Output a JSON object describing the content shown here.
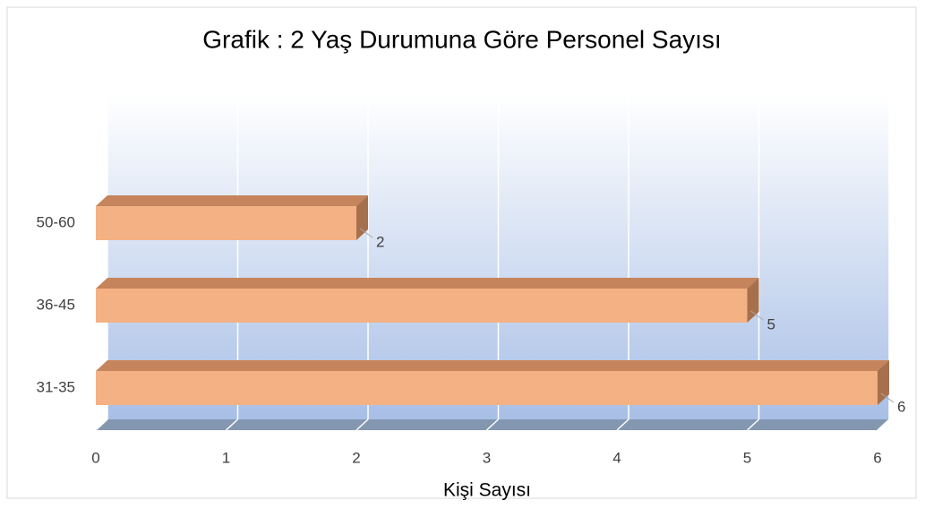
{
  "chart_data": {
    "type": "bar",
    "orientation": "horizontal",
    "title": "Grafik : 2 Yaş Durumuna Göre Personel Sayısı",
    "x_label": "Kişi Sayısı",
    "categories": [
      "50-60",
      "36-45",
      "31-35"
    ],
    "values": [
      2,
      5,
      6
    ],
    "color": "#f4b183",
    "xlim": [
      0,
      6
    ],
    "xticks": [
      0,
      1,
      2,
      3,
      4,
      5,
      6
    ],
    "grid": true
  }
}
